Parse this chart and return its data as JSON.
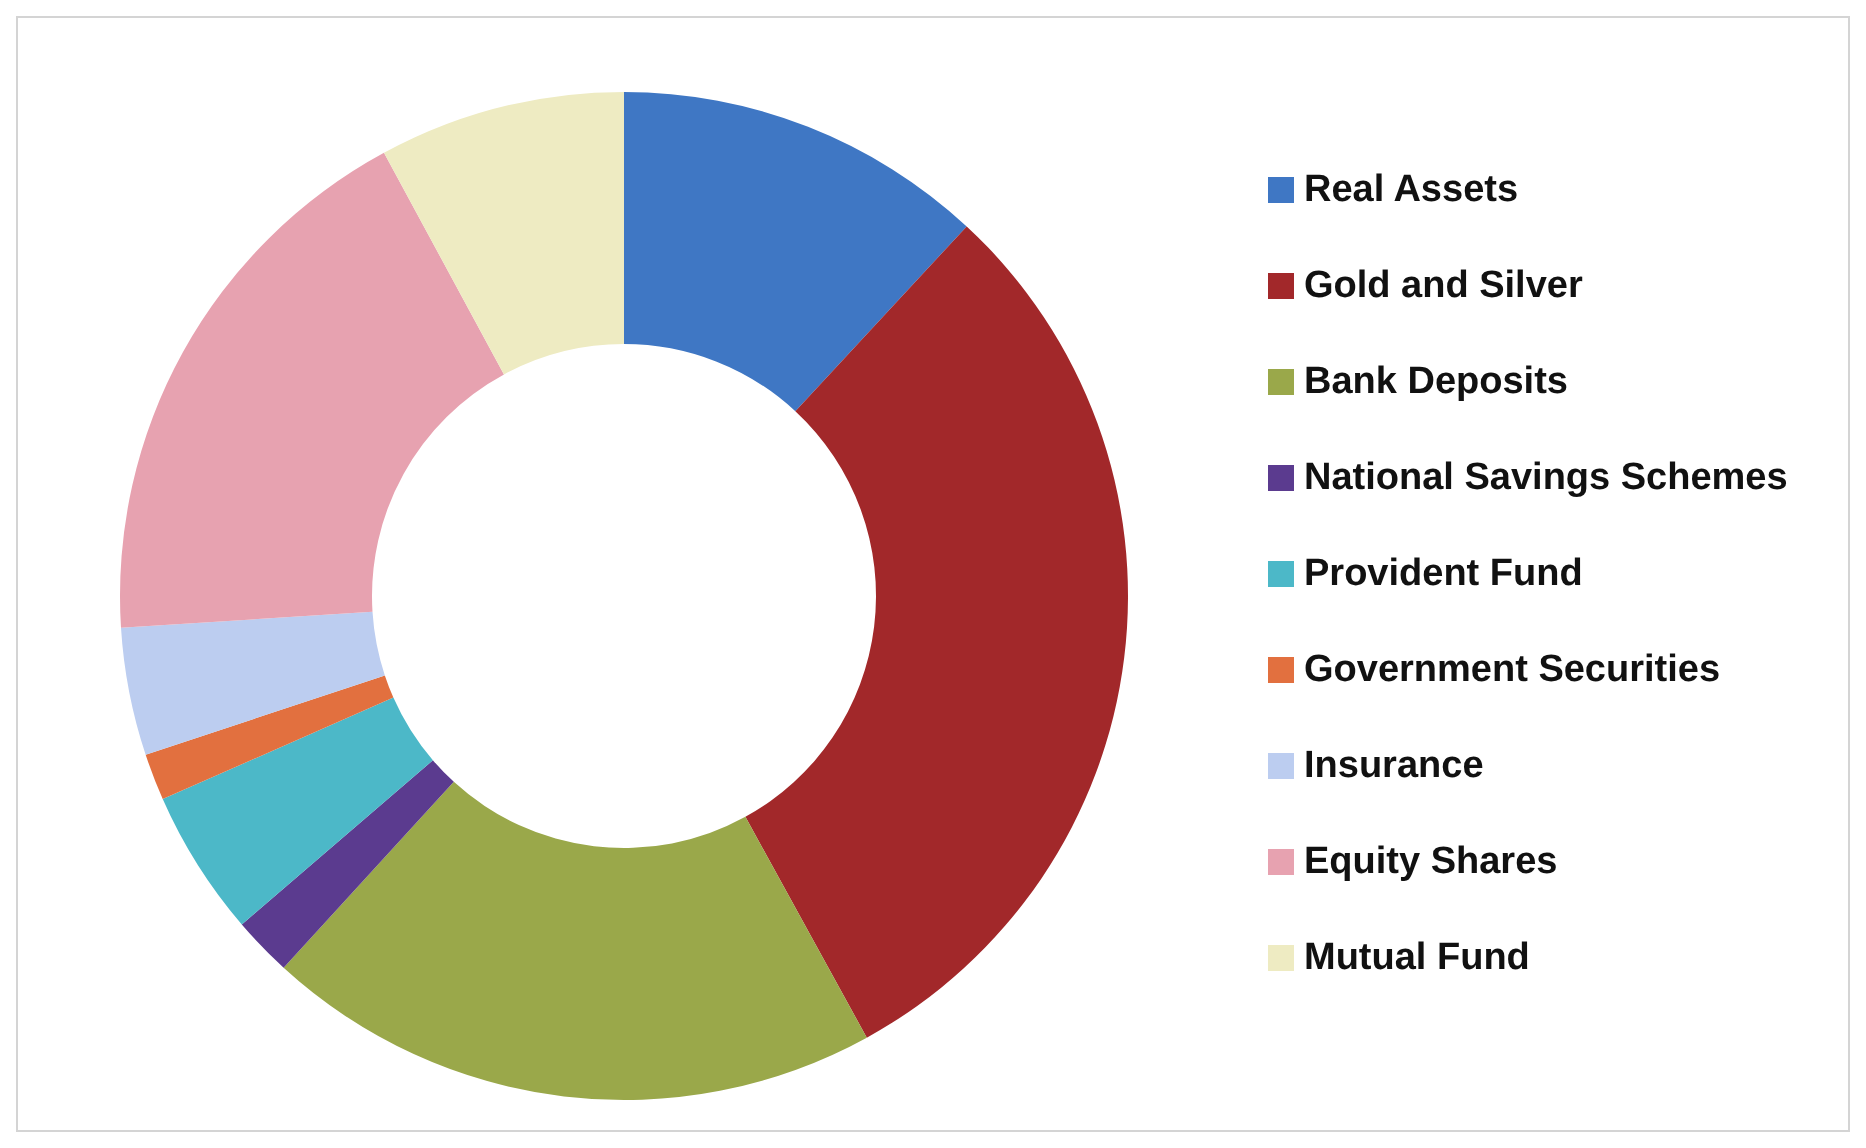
{
  "chart_data": {
    "type": "donut",
    "categories": [
      "Real Assets",
      "Gold and Silver",
      "Bank Deposits",
      "National Savings Schemes",
      "Provident Fund",
      "Government Securities",
      "Insurance",
      "Equity Shares",
      "Mutual Fund"
    ],
    "values": [
      11.9,
      30.1,
      19.8,
      1.9,
      4.7,
      1.5,
      4.1,
      18.1,
      7.9
    ],
    "colors": [
      "#3f77c4",
      "#a2282a",
      "#9aa84a",
      "#5b3b8f",
      "#4cb8c8",
      "#e2703f",
      "#bccdf0",
      "#e7a2b0",
      "#eeebc2"
    ],
    "legend": "right"
  }
}
